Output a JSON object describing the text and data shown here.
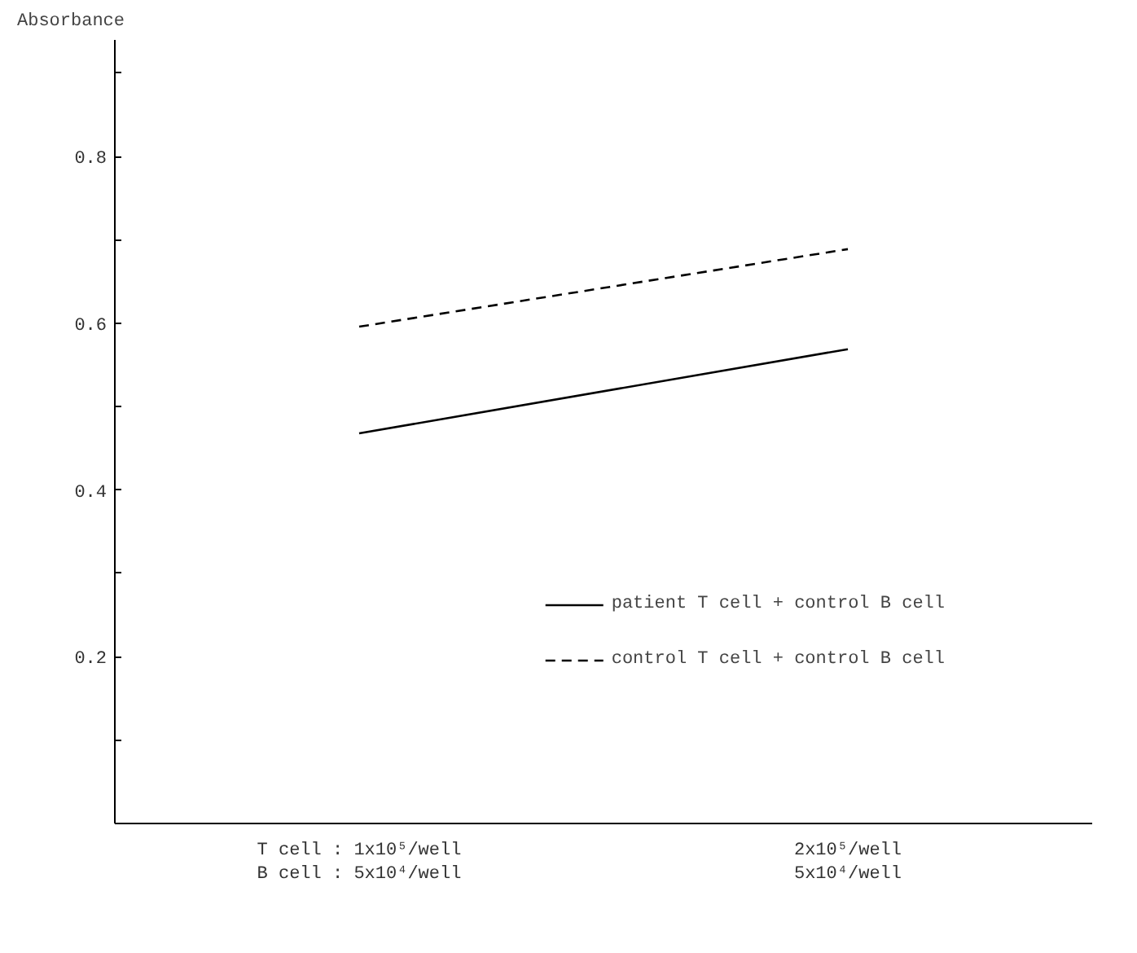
{
  "chart_data": {
    "type": "line",
    "ylabel": "Absorbance",
    "categories": [
      "T cell : 1x10⁵/well\nB cell : 5x10⁴/well",
      "2x10⁵/well\n5x10⁴/well"
    ],
    "ylim": [
      0,
      0.94
    ],
    "yticks": [
      {
        "value": 0.1,
        "label": null
      },
      0.2,
      {
        "value": 0.3,
        "label": null
      },
      0.4,
      {
        "value": 0.5,
        "label": null
      },
      0.6,
      {
        "value": 0.7,
        "label": null
      },
      0.8,
      {
        "value": 0.9,
        "label": null
      }
    ],
    "series": [
      {
        "name": "patient T cell + control B cell",
        "color": "#000000",
        "line_style": "solid",
        "values": [
          0.468,
          0.569
        ]
      },
      {
        "name": "control T cell + control B cell",
        "color": "#000000",
        "line_style": "dashed",
        "values": [
          0.596,
          0.689
        ]
      }
    ],
    "legend": "bottom right",
    "grid": false,
    "marker": "none"
  }
}
